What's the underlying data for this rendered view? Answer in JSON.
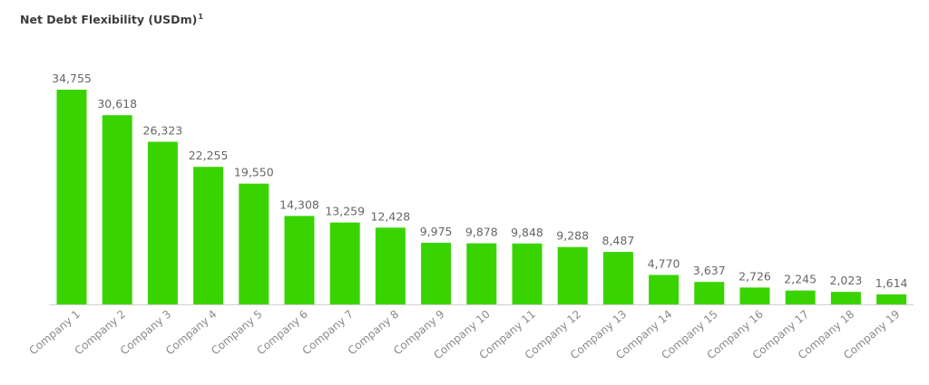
{
  "chart_data": {
    "type": "bar",
    "title": "Net Debt Flexibility (USDm)",
    "title_footnote": "1",
    "xlabel": "",
    "ylabel": "",
    "categories": [
      "Company 1",
      "Company 2",
      "Company 3",
      "Company 4",
      "Company 5",
      "Company 6",
      "Company 7",
      "Company 8",
      "Company 9",
      "Company 10",
      "Company 11",
      "Company 12",
      "Company 13",
      "Company 14",
      "Company 15",
      "Company 16",
      "Company 17",
      "Company 18",
      "Company 19"
    ],
    "values": [
      34755,
      30618,
      26323,
      22255,
      19550,
      14308,
      13259,
      12428,
      9975,
      9878,
      9848,
      9288,
      8487,
      4770,
      3637,
      2726,
      2245,
      2023,
      1614
    ],
    "value_labels": [
      "34,755",
      "30,618",
      "26,323",
      "22,255",
      "19,550",
      "14,308",
      "13,259",
      "12,428",
      "9,975",
      "9,878",
      "9,848",
      "9,288",
      "8,487",
      "4,770",
      "3,637",
      "2,726",
      "2,245",
      "2,023",
      "1,614"
    ],
    "ylim": [
      0,
      34755
    ],
    "grid": false,
    "legend": "none",
    "bar_color": "#39d400"
  }
}
